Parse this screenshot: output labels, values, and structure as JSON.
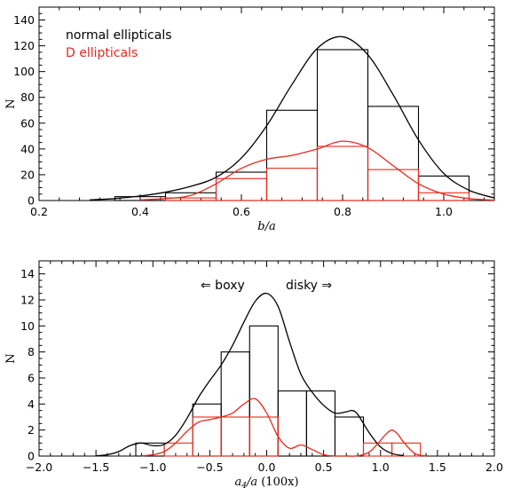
{
  "colors": {
    "normal": "#000000",
    "d": "#e8291c"
  },
  "chart_data": [
    {
      "type": "histogram-with-kde",
      "xlabel": "b/a",
      "ylabel": "N",
      "xlim": [
        0.2,
        1.1
      ],
      "ylim": [
        0,
        150
      ],
      "xticks": [
        0.2,
        0.4,
        0.6,
        0.8,
        1.0
      ],
      "xtick_labels": [
        "0.2",
        "0.4",
        "0.6",
        "0.8",
        "1.0"
      ],
      "yticks": [
        0,
        20,
        40,
        60,
        80,
        100,
        120,
        140
      ],
      "ytick_labels": [
        "0",
        "20",
        "40",
        "60",
        "80",
        "100",
        "120",
        "140"
      ],
      "legend": {
        "position": "top-left",
        "entries": [
          "normal ellipticals",
          "D ellipticals"
        ]
      },
      "series": [
        {
          "name": "normal ellipticals",
          "color": "#000000",
          "bin_edges": [
            0.35,
            0.45,
            0.55,
            0.65,
            0.75,
            0.85,
            0.95,
            1.05
          ],
          "counts": [
            3,
            6,
            22,
            70,
            117,
            73,
            19
          ],
          "kde": {
            "x": [
              0.3,
              0.35,
              0.4,
              0.45,
              0.5,
              0.55,
              0.6,
              0.65,
              0.7,
              0.75,
              0.8,
              0.85,
              0.9,
              0.95,
              1.0,
              1.05,
              1.1
            ],
            "y": [
              0.5,
              1.5,
              3.5,
              6.5,
              11,
              18,
              33,
              58,
              90,
              118,
              127,
              113,
              82,
              47,
              21,
              8,
              2
            ]
          }
        },
        {
          "name": "D ellipticals",
          "color": "#e8291c",
          "bin_edges": [
            0.45,
            0.55,
            0.65,
            0.75,
            0.85,
            0.95,
            1.05
          ],
          "counts": [
            2,
            17,
            25,
            42,
            24,
            6
          ],
          "kde": {
            "x": [
              0.4,
              0.45,
              0.5,
              0.55,
              0.6,
              0.65,
              0.7,
              0.75,
              0.8,
              0.85,
              0.9,
              0.95,
              1.0,
              1.05,
              1.1
            ],
            "y": [
              0.5,
              1.5,
              4,
              13,
              25,
              32,
              35,
              40,
              46,
              41,
              27,
              13,
              5,
              1.5,
              0.3
            ]
          }
        }
      ]
    },
    {
      "type": "histogram-with-kde",
      "xlabel": "a4/a (100x)",
      "ylabel": "N",
      "xlim": [
        -2.0,
        2.0
      ],
      "ylim": [
        0,
        15
      ],
      "xticks": [
        -2.0,
        -1.5,
        -1.0,
        -0.5,
        0.0,
        0.5,
        1.0,
        1.5,
        2.0
      ],
      "xtick_labels": [
        "−2.0",
        "−1.5",
        "−1.0",
        "−0.5",
        "0.0",
        "0.5",
        "1.0",
        "1.5",
        "2.0"
      ],
      "yticks": [
        0,
        2,
        4,
        6,
        8,
        10,
        12,
        14
      ],
      "ytick_labels": [
        "0",
        "2",
        "4",
        "6",
        "8",
        "10",
        "12",
        "14"
      ],
      "annotations": {
        "left": "⇐ boxy",
        "right": "disky ⇒"
      },
      "series": [
        {
          "name": "normal ellipticals",
          "color": "#000000",
          "bin_edges": [
            -1.15,
            -0.9,
            -0.65,
            -0.4,
            -0.15,
            0.1,
            0.35,
            0.6,
            0.85
          ],
          "counts": [
            1,
            0,
            4,
            8,
            10,
            5,
            5,
            3
          ],
          "kde": {
            "x": [
              -1.5,
              -1.4,
              -1.3,
              -1.2,
              -1.1,
              -1.0,
              -0.9,
              -0.8,
              -0.7,
              -0.6,
              -0.5,
              -0.4,
              -0.3,
              -0.2,
              -0.1,
              0.0,
              0.1,
              0.2,
              0.3,
              0.4,
              0.5,
              0.6,
              0.7,
              0.75,
              0.8,
              0.9,
              1.0,
              1.1,
              1.2
            ],
            "y": [
              0.02,
              0.1,
              0.35,
              0.8,
              1.0,
              0.8,
              0.9,
              1.6,
              2.9,
              4.5,
              5.8,
              7.0,
              8.5,
              10.3,
              11.9,
              12.5,
              11.5,
              8.8,
              6.3,
              4.9,
              3.9,
              3.3,
              3.4,
              3.5,
              3.2,
              1.8,
              0.7,
              0.2,
              0.03
            ]
          }
        },
        {
          "name": "D ellipticals",
          "color": "#e8291c",
          "bin_edges": [
            -0.9,
            -0.65,
            -0.4,
            -0.15,
            0.1,
            0.35,
            0.6,
            0.85,
            1.1,
            1.35
          ],
          "counts": [
            1,
            3,
            3,
            3,
            0,
            0,
            0,
            1,
            1
          ],
          "kde": {
            "x": [
              -1.1,
              -1.0,
              -0.9,
              -0.8,
              -0.7,
              -0.6,
              -0.5,
              -0.4,
              -0.3,
              -0.2,
              -0.1,
              0.0,
              0.1,
              0.2,
              0.3,
              0.4,
              0.5,
              0.6,
              0.7,
              0.8,
              0.9,
              1.0,
              1.05,
              1.1,
              1.15,
              1.2,
              1.3,
              1.4
            ],
            "y": [
              0.02,
              0.1,
              0.35,
              1.0,
              1.9,
              2.6,
              2.8,
              3.0,
              3.3,
              4.0,
              4.4,
              3.3,
              1.5,
              0.6,
              0.85,
              0.5,
              0.1,
              0.01,
              0.0,
              0.02,
              0.3,
              1.2,
              1.7,
              2.0,
              1.7,
              1.1,
              0.2,
              0.01
            ]
          }
        }
      ]
    }
  ]
}
